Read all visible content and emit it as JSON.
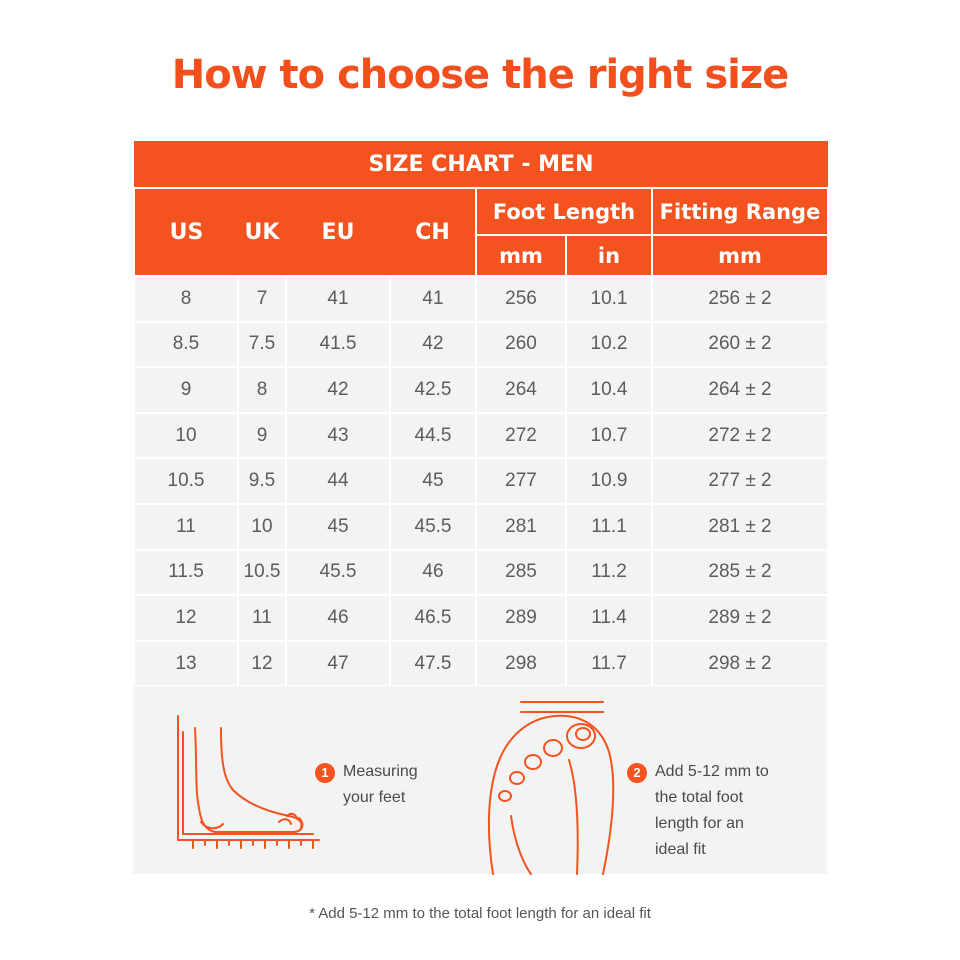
{
  "title": "How to choose the right size",
  "table": {
    "banner": "SIZE CHART - MEN",
    "size_headers": [
      "US",
      "UK",
      "EU",
      "CH"
    ],
    "foot_length_header": "Foot Length",
    "foot_length_units": [
      "mm",
      "in"
    ],
    "fitting_range_header": "Fitting Range",
    "fitting_range_unit": "mm",
    "rows": [
      [
        "8",
        "7",
        "41",
        "41",
        "256",
        "10.1",
        "256 ± 2"
      ],
      [
        "8.5",
        "7.5",
        "41.5",
        "42",
        "260",
        "10.2",
        "260 ± 2"
      ],
      [
        "9",
        "8",
        "42",
        "42.5",
        "264",
        "10.4",
        "264 ± 2"
      ],
      [
        "10",
        "9",
        "43",
        "44.5",
        "272",
        "10.7",
        "272 ± 2"
      ],
      [
        "10.5",
        "9.5",
        "44",
        "45",
        "277",
        "10.9",
        "277 ± 2"
      ],
      [
        "11",
        "10",
        "45",
        "45.5",
        "281",
        "11.1",
        "281 ± 2"
      ],
      [
        "11.5",
        "10.5",
        "45.5",
        "46",
        "285",
        "11.2",
        "285 ± 2"
      ],
      [
        "12",
        "11",
        "46",
        "46.5",
        "289",
        "11.4",
        "289 ± 2"
      ],
      [
        "13",
        "12",
        "47",
        "47.5",
        "298",
        "11.7",
        "298 ± 2"
      ]
    ]
  },
  "steps": [
    {
      "number": "1",
      "lines": [
        "Measuring",
        "your feet"
      ]
    },
    {
      "number": "2",
      "lines": [
        "Add 5-12 mm to",
        "the total foot",
        "length for an",
        "ideal fit"
      ]
    }
  ],
  "footnote": "* Add 5-12 mm to the total foot length for an ideal fit",
  "colors": {
    "accent": "#f4521f",
    "cell_bg": "#f3f3f3",
    "title": "#f24f1d"
  }
}
